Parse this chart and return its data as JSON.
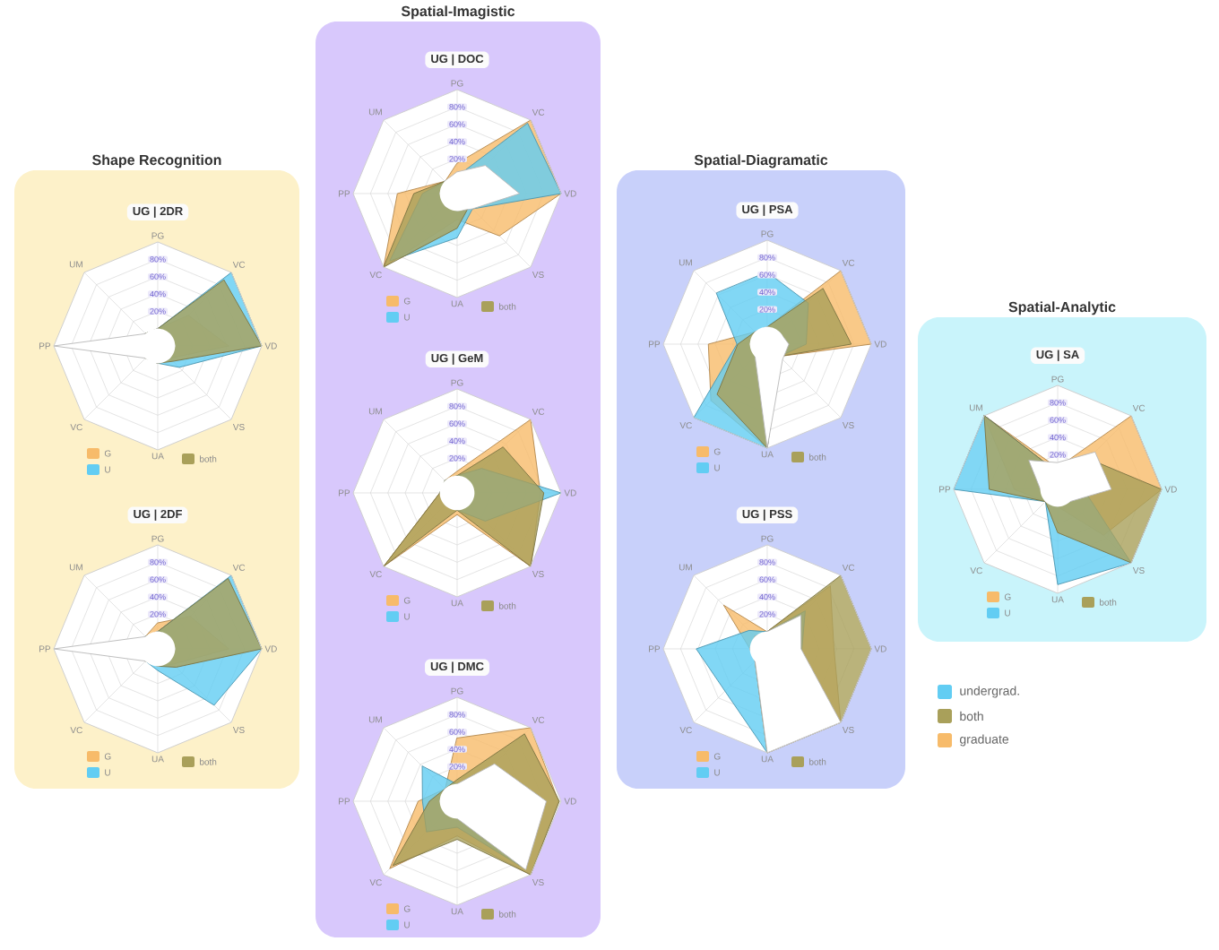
{
  "chart_data": [
    {
      "type": "radar",
      "title": "Shape Recognition",
      "subtitle": "UG | 2DR",
      "categories": [
        "PG",
        "VC",
        "VD",
        "VS",
        "UA",
        "VC",
        "PP",
        "UM"
      ],
      "ylim": [
        -20,
        100
      ],
      "yticks": [
        {
          "value": 20,
          "label": "20%"
        },
        {
          "value": 40,
          "label": "40%"
        },
        {
          "value": 60,
          "label": "60%"
        },
        {
          "value": 80,
          "label": "80%"
        }
      ],
      "grid": true,
      "legend": "bottom",
      "series": [
        {
          "name": "G",
          "color": "#f7bb6a",
          "values": [
            0,
            30,
            62,
            0,
            0,
            0,
            0,
            0
          ]
        },
        {
          "name": "U",
          "color": "#62cdf3",
          "values": [
            0,
            100,
            100,
            15,
            0,
            0,
            0,
            0
          ]
        },
        {
          "name": "both",
          "color": "#a9a05a",
          "values": [
            0,
            88,
            100,
            5,
            0,
            0,
            0,
            0
          ]
        },
        {
          "color": "#ffffff",
          "values": [
            0,
            0,
            0,
            0,
            0,
            0,
            100,
            0
          ]
        }
      ]
    },
    {
      "type": "radar",
      "subtitle": "UG | 2DF",
      "categories": [
        "PG",
        "VC",
        "VD",
        "VS",
        "UA",
        "VC",
        "PP",
        "UM"
      ],
      "ylim": [
        -20,
        100
      ],
      "yticks": [
        {
          "value": 20,
          "label": "20%"
        },
        {
          "value": 40,
          "label": "40%"
        },
        {
          "value": 60,
          "label": "60%"
        },
        {
          "value": 80,
          "label": "80%"
        }
      ],
      "grid": true,
      "legend": "bottom",
      "series": [
        {
          "name": "G",
          "color": "#f7bb6a",
          "values": [
            10,
            33,
            62,
            5,
            0,
            0,
            0,
            0
          ]
        },
        {
          "name": "U",
          "color": "#62cdf3",
          "values": [
            0,
            100,
            100,
            72,
            5,
            0,
            0,
            0
          ]
        },
        {
          "name": "both",
          "color": "#a9a05a",
          "values": [
            0,
            95,
            100,
            10,
            0,
            0,
            0,
            0
          ]
        },
        {
          "color": "#ffffff",
          "values": [
            0,
            0,
            0,
            0,
            0,
            0,
            100,
            0
          ]
        }
      ]
    },
    {
      "type": "radar",
      "title": "Spatial-Imagistic",
      "subtitle": "UG | DOC",
      "categories": [
        "PG",
        "VC",
        "VD",
        "VS",
        "UA",
        "VC",
        "PP",
        "UM"
      ],
      "ylim": [
        -20,
        100
      ],
      "yticks": [
        {
          "value": 20,
          "label": "20%"
        },
        {
          "value": 40,
          "label": "40%"
        },
        {
          "value": 60,
          "label": "60%"
        },
        {
          "value": 80,
          "label": "80%"
        }
      ],
      "grid": true,
      "legend": "bottom",
      "series": [
        {
          "name": "G",
          "color": "#f7bb6a",
          "values": [
            15,
            100,
            100,
            49,
            10,
            100,
            49,
            0
          ]
        },
        {
          "name": "U",
          "color": "#62cdf3",
          "values": [
            0,
            95,
            100,
            5,
            31,
            90,
            20,
            0
          ]
        },
        {
          "name": "both",
          "color": "#a9a05a",
          "values": [
            0,
            0,
            0,
            0,
            20,
            100,
            30,
            0
          ]
        },
        {
          "color": "#ffffff",
          "values": [
            5,
            26,
            52,
            5,
            0,
            0,
            0,
            0
          ]
        }
      ]
    },
    {
      "type": "radar",
      "subtitle": "UG | GeM",
      "categories": [
        "PG",
        "VC",
        "VD",
        "VS",
        "UA",
        "VC",
        "PP",
        "UM"
      ],
      "ylim": [
        -20,
        100
      ],
      "yticks": [
        {
          "value": 20,
          "label": "20%"
        },
        {
          "value": 40,
          "label": "40%"
        },
        {
          "value": 60,
          "label": "60%"
        },
        {
          "value": 80,
          "label": "80%"
        }
      ],
      "grid": true,
      "legend": "bottom",
      "series": [
        {
          "name": "G",
          "color": "#f7bb6a",
          "values": [
            5,
            100,
            76,
            100,
            5,
            100,
            0,
            0
          ]
        },
        {
          "name": "U",
          "color": "#62cdf3",
          "values": [
            0,
            20,
            100,
            26,
            0,
            0,
            0,
            0
          ]
        },
        {
          "name": "both",
          "color": "#a9a05a",
          "values": [
            0,
            55,
            80,
            100,
            0,
            100,
            0,
            0
          ]
        }
      ]
    },
    {
      "type": "radar",
      "subtitle": "UG | DMC",
      "categories": [
        "PG",
        "VC",
        "VD",
        "VS",
        "UA",
        "VC",
        "PP",
        "UM"
      ],
      "ylim": [
        -20,
        100
      ],
      "yticks": [
        {
          "value": 20,
          "label": "20%"
        },
        {
          "value": 40,
          "label": "40%"
        },
        {
          "value": 60,
          "label": "60%"
        },
        {
          "value": 80,
          "label": "80%"
        }
      ],
      "grid": true,
      "legend": "bottom",
      "series": [
        {
          "name": "G",
          "color": "#f7bb6a",
          "values": [
            53,
            100,
            97,
            100,
            20,
            90,
            25,
            0
          ]
        },
        {
          "name": "U",
          "color": "#62cdf3",
          "values": [
            0,
            30,
            80,
            90,
            10,
            30,
            20,
            37
          ]
        },
        {
          "name": "both",
          "color": "#a9a05a",
          "values": [
            5,
            90,
            98,
            100,
            24,
            85,
            12,
            0
          ]
        },
        {
          "color": "#ffffff",
          "values": [
            0,
            41,
            83,
            92,
            0,
            0,
            0,
            0
          ]
        }
      ]
    },
    {
      "type": "radar",
      "title": "Spatial-Diagramatic",
      "subtitle": "UG | PSA",
      "categories": [
        "PG",
        "VC",
        "VD",
        "VS",
        "UA",
        "VC",
        "PP",
        "UM"
      ],
      "ylim": [
        -20,
        100
      ],
      "yticks": [
        {
          "value": 20,
          "label": "20%"
        },
        {
          "value": 40,
          "label": "40%"
        },
        {
          "value": 60,
          "label": "60%"
        },
        {
          "value": 80,
          "label": "80%"
        }
      ],
      "grid": true,
      "legend": "bottom",
      "series": [
        {
          "name": "G",
          "color": "#f7bb6a",
          "values": [
            0,
            100,
            100,
            0,
            100,
            72,
            48,
            0
          ]
        },
        {
          "name": "U",
          "color": "#62cdf3",
          "values": [
            63,
            47,
            25,
            0,
            100,
            100,
            15,
            63
          ]
        },
        {
          "name": "both",
          "color": "#a9a05a",
          "values": [
            0,
            71,
            77,
            0,
            100,
            62,
            14,
            0
          ]
        },
        {
          "color": "#ffffff",
          "values": [
            0,
            0,
            5,
            5,
            100,
            0,
            0,
            0
          ]
        }
      ]
    },
    {
      "type": "radar",
      "subtitle": "UG | PSS",
      "categories": [
        "PG",
        "VC",
        "VD",
        "VS",
        "UA",
        "VC",
        "PP",
        "UM"
      ],
      "ylim": [
        -20,
        100
      ],
      "yticks": [
        {
          "value": 20,
          "label": "20%"
        },
        {
          "value": 40,
          "label": "40%"
        },
        {
          "value": 60,
          "label": "60%"
        },
        {
          "value": 80,
          "label": "80%"
        }
      ],
      "grid": true,
      "legend": "bottom",
      "series": [
        {
          "name": "G",
          "color": "#f7bb6a",
          "values": [
            0,
            83,
            57,
            100,
            100,
            0,
            0,
            51
          ]
        },
        {
          "name": "U",
          "color": "#62cdf3",
          "values": [
            0,
            42,
            20,
            40,
            100,
            49,
            62,
            10
          ]
        },
        {
          "name": "both",
          "color": "#a9a05a",
          "values": [
            0,
            100,
            100,
            100,
            100,
            0,
            0,
            0
          ]
        },
        {
          "color": "#ffffff",
          "values": [
            0,
            35,
            19,
            100,
            100,
            0,
            0,
            0
          ]
        }
      ]
    },
    {
      "type": "radar",
      "title": "Spatial-Analytic",
      "subtitle": "UG | SA",
      "categories": [
        "PG",
        "VC",
        "VD",
        "VS",
        "UA",
        "VC",
        "PP",
        "UM"
      ],
      "ylim": [
        -20,
        100
      ],
      "yticks": [
        {
          "value": 20,
          "label": "20%"
        },
        {
          "value": 40,
          "label": "40%"
        },
        {
          "value": 60,
          "label": "60%"
        },
        {
          "value": 80,
          "label": "80%"
        }
      ],
      "grid": true,
      "legend": "bottom",
      "series": [
        {
          "name": "G",
          "color": "#f7bb6a",
          "values": [
            5,
            100,
            100,
            55,
            0,
            0,
            30,
            100
          ]
        },
        {
          "name": "U",
          "color": "#62cdf3",
          "values": [
            0,
            20,
            10,
            100,
            90,
            0,
            100,
            100
          ]
        },
        {
          "name": "both",
          "color": "#a9a05a",
          "values": [
            0,
            30,
            100,
            100,
            30,
            0,
            59,
            100
          ]
        },
        {
          "color": "#ffffff",
          "values": [
            11,
            41,
            42,
            0,
            0,
            0,
            0,
            27
          ]
        }
      ]
    },
    {
      "type": "other",
      "categories": [
        "undergrad.",
        "both",
        "graduate"
      ],
      "colors": [
        "#62cdf3",
        "#a9a05a",
        "#f7bb6a"
      ]
    }
  ]
}
